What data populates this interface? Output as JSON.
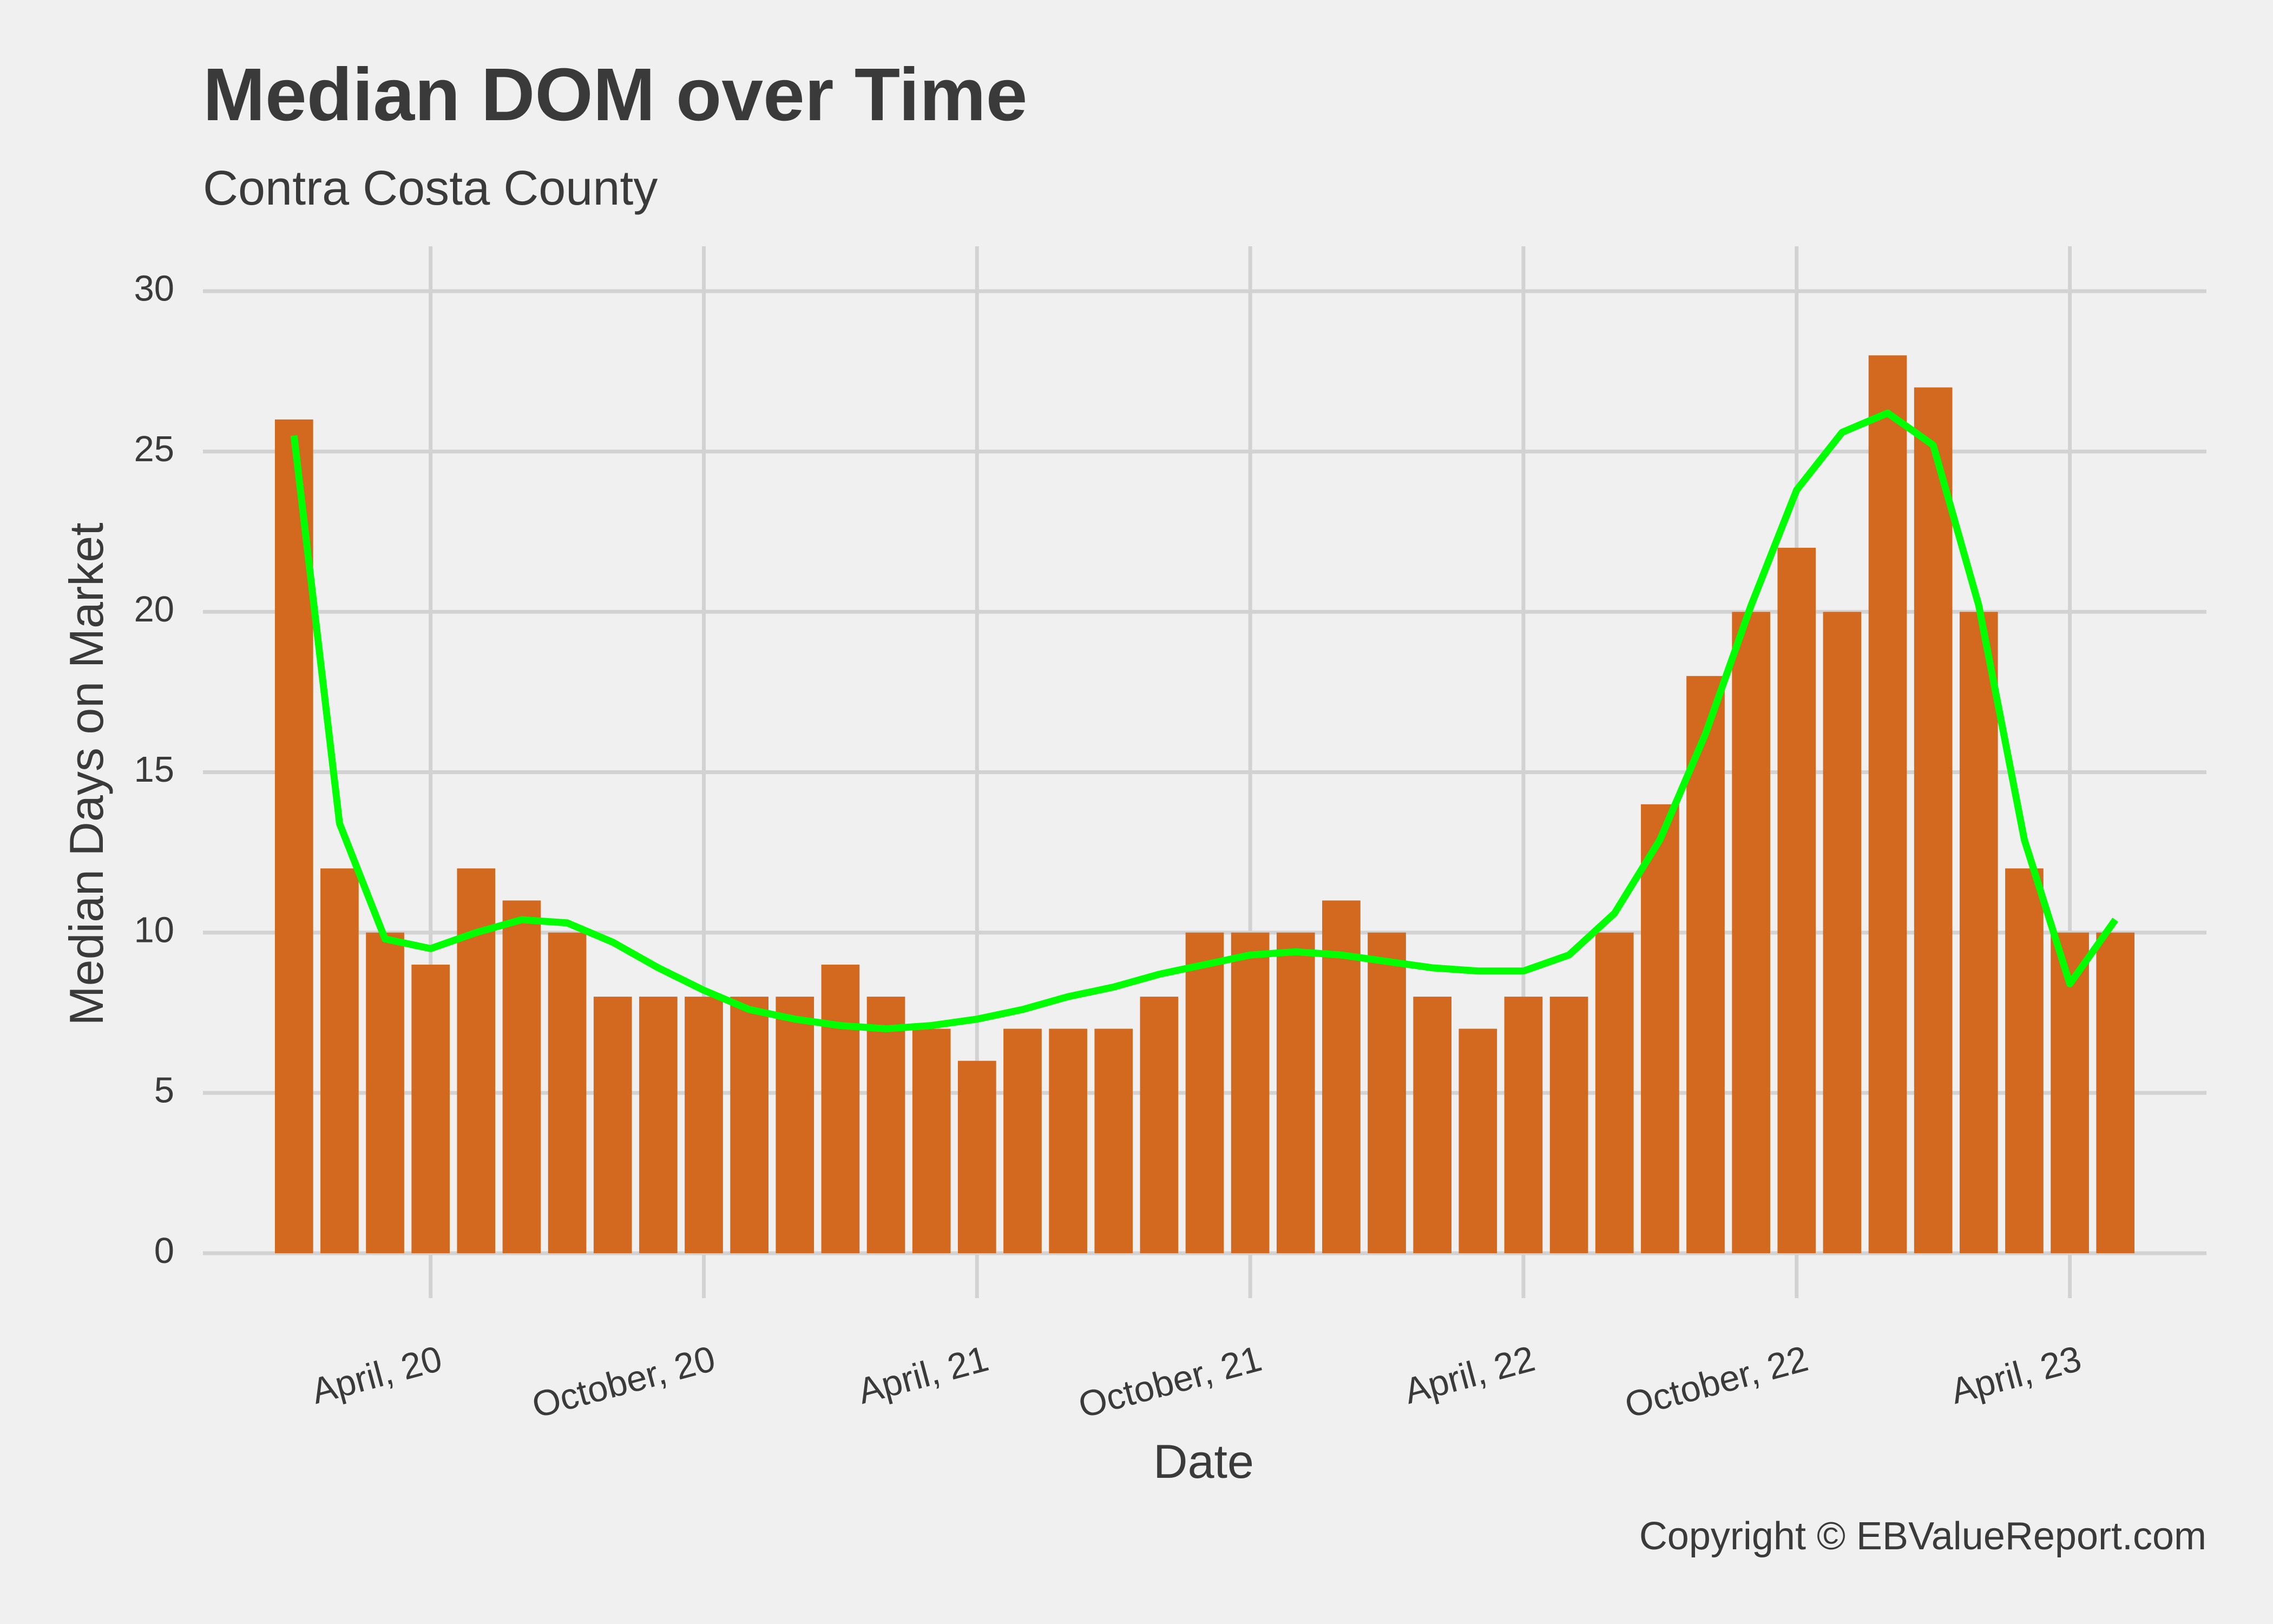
{
  "chart_data": {
    "type": "bar",
    "title": "Median DOM over Time",
    "subtitle": "Contra Costa County",
    "x_label": "Date",
    "y_label": "Median Days on Market",
    "caption": "Copyright  © EBValueReport.com",
    "x": [
      "2020-01",
      "2020-02",
      "2020-03",
      "2020-04",
      "2020-05",
      "2020-06",
      "2020-07",
      "2020-08",
      "2020-09",
      "2020-10",
      "2020-11",
      "2020-12",
      "2021-01",
      "2021-02",
      "2021-03",
      "2021-04",
      "2021-05",
      "2021-06",
      "2021-07",
      "2021-08",
      "2021-09",
      "2021-10",
      "2021-11",
      "2021-12",
      "2022-01",
      "2022-02",
      "2022-03",
      "2022-04",
      "2022-05",
      "2022-06",
      "2022-07",
      "2022-08",
      "2022-09",
      "2022-10",
      "2022-11",
      "2022-12",
      "2023-01",
      "2023-02",
      "2023-03",
      "2023-04",
      "2023-05"
    ],
    "series": [
      {
        "type": "bar",
        "color": "#d2691e",
        "values": [
          26,
          12,
          10,
          9,
          12,
          11,
          10,
          8,
          8,
          8,
          8,
          8,
          9,
          8,
          7,
          6,
          7,
          7,
          7,
          8,
          10,
          10,
          10,
          11,
          10,
          8,
          7,
          8,
          8,
          10,
          14,
          18,
          20,
          22,
          20,
          28,
          27,
          20,
          12,
          10,
          10
        ]
      },
      {
        "type": "line",
        "color": "#00ff00",
        "values": [
          25.5,
          13.4,
          9.8,
          9.5,
          10.0,
          10.4,
          10.3,
          9.7,
          8.9,
          8.2,
          7.6,
          7.3,
          7.1,
          7.0,
          7.1,
          7.3,
          7.6,
          8.0,
          8.3,
          8.7,
          9.0,
          9.3,
          9.4,
          9.3,
          9.1,
          8.9,
          8.8,
          8.8,
          9.3,
          10.6,
          12.9,
          16.2,
          20.2,
          23.8,
          25.6,
          26.2,
          25.2,
          20.2,
          12.9,
          8.4,
          10.4
        ]
      }
    ],
    "xlim": [
      "2019-11",
      "2023-07"
    ],
    "xticks": [
      {
        "value": "2020-04",
        "label": "April, 20"
      },
      {
        "value": "2020-10",
        "label": "October, 20"
      },
      {
        "value": "2021-04",
        "label": "April, 21"
      },
      {
        "value": "2021-10",
        "label": "October, 21"
      },
      {
        "value": "2022-04",
        "label": "April, 22"
      },
      {
        "value": "2022-10",
        "label": "October, 22"
      },
      {
        "value": "2023-04",
        "label": "April, 23"
      }
    ],
    "ylim": [
      -1.4,
      31.4
    ],
    "yticks": [
      0,
      5,
      10,
      15,
      20,
      25,
      30
    ],
    "grid": true
  }
}
